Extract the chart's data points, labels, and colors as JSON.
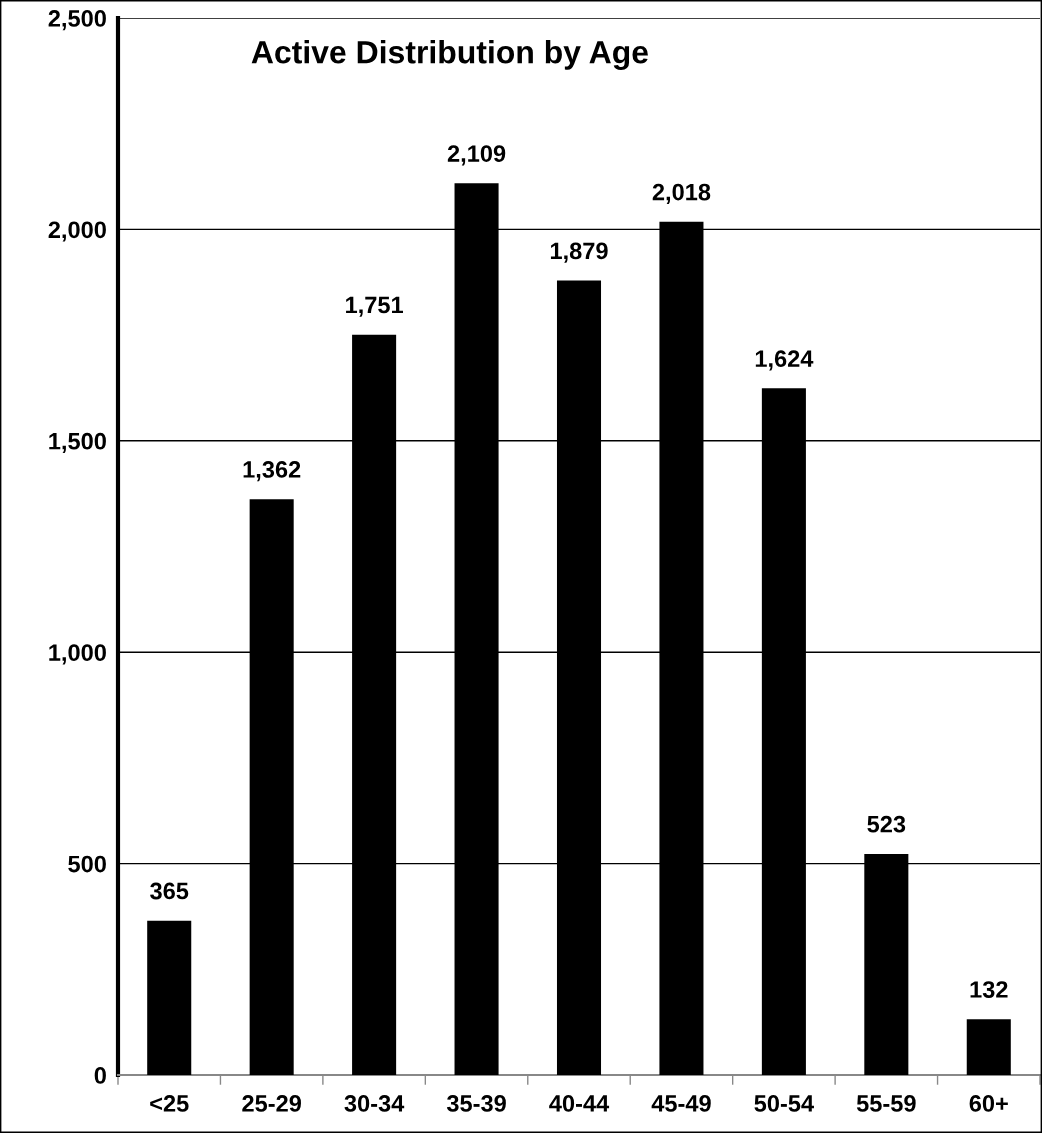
{
  "chart_data": {
    "type": "bar",
    "title": "Active Distribution by Age",
    "categories": [
      "<25",
      "25-29",
      "30-34",
      "35-39",
      "40-44",
      "45-49",
      "50-54",
      "55-59",
      "60+"
    ],
    "values": [
      365,
      1362,
      1751,
      2109,
      1879,
      2018,
      1624,
      523,
      132
    ],
    "color": "#000000",
    "ylim": [
      0,
      2500
    ],
    "yticks": [
      {
        "value": 0,
        "label": "0"
      },
      {
        "value": 500,
        "label": "500"
      },
      {
        "value": 1000,
        "label": "1,000"
      },
      {
        "value": 1500,
        "label": "1,500"
      },
      {
        "value": 2000,
        "label": "2,000"
      },
      {
        "value": 2500,
        "label": "2,500"
      }
    ],
    "value_labels": [
      "365",
      "1,362",
      "1,751",
      "2,109",
      "1,879",
      "2,018",
      "1,624",
      "523",
      "132"
    ],
    "grid": "y",
    "legend": false
  }
}
